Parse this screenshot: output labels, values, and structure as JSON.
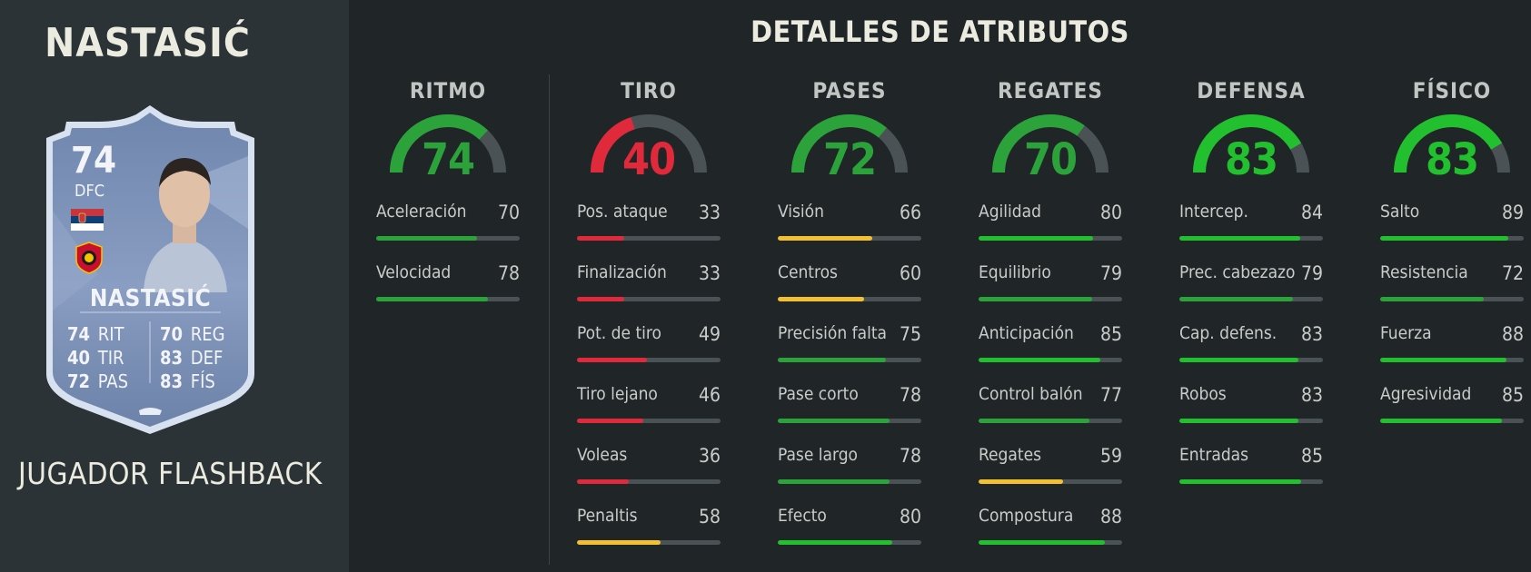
{
  "player": {
    "name": "NASTASIĆ",
    "card_type": "JUGADOR FLASHBACK",
    "card": {
      "rating": "74",
      "position": "DFC",
      "name": "NASTASIĆ",
      "stats_left": [
        {
          "value": "74",
          "label": "RIT"
        },
        {
          "value": "40",
          "label": "TIR"
        },
        {
          "value": "72",
          "label": "PAS"
        }
      ],
      "stats_right": [
        {
          "value": "70",
          "label": "REG"
        },
        {
          "value": "83",
          "label": "DEF"
        },
        {
          "value": "83",
          "label": "FÍS"
        }
      ]
    }
  },
  "title": "DETALLES DE ATRIBUTOS",
  "colors": {
    "green": "#2ca33a",
    "bright_green": "#22c02e",
    "yellow": "#f2c031",
    "red": "#e0293a",
    "track": "#4a5256"
  },
  "categories": [
    {
      "name": "RITMO",
      "value": 74,
      "attributes": [
        {
          "label": "Aceleración",
          "value": 70
        },
        {
          "label": "Velocidad",
          "value": 78
        }
      ]
    },
    {
      "name": "TIRO",
      "value": 40,
      "attributes": [
        {
          "label": "Pos. ataque",
          "value": 33
        },
        {
          "label": "Finalización",
          "value": 33
        },
        {
          "label": "Pot. de tiro",
          "value": 49
        },
        {
          "label": "Tiro lejano",
          "value": 46
        },
        {
          "label": "Voleas",
          "value": 36
        },
        {
          "label": "Penaltis",
          "value": 58
        }
      ]
    },
    {
      "name": "PASES",
      "value": 72,
      "attributes": [
        {
          "label": "Visión",
          "value": 66
        },
        {
          "label": "Centros",
          "value": 60
        },
        {
          "label": "Precisión falta",
          "value": 75
        },
        {
          "label": "Pase corto",
          "value": 78
        },
        {
          "label": "Pase largo",
          "value": 78
        },
        {
          "label": "Efecto",
          "value": 80
        }
      ]
    },
    {
      "name": "REGATES",
      "value": 70,
      "attributes": [
        {
          "label": "Agilidad",
          "value": 80
        },
        {
          "label": "Equilibrio",
          "value": 79
        },
        {
          "label": "Anticipación",
          "value": 85
        },
        {
          "label": "Control balón",
          "value": 77
        },
        {
          "label": "Regates",
          "value": 59
        },
        {
          "label": "Compostura",
          "value": 88
        }
      ]
    },
    {
      "name": "DEFENSA",
      "value": 83,
      "attributes": [
        {
          "label": "Intercep.",
          "value": 84
        },
        {
          "label": "Prec. cabezazo",
          "value": 79
        },
        {
          "label": "Cap. defens.",
          "value": 83
        },
        {
          "label": "Robos",
          "value": 83
        },
        {
          "label": "Entradas",
          "value": 85
        }
      ]
    },
    {
      "name": "FÍSICO",
      "value": 83,
      "attributes": [
        {
          "label": "Salto",
          "value": 89
        },
        {
          "label": "Resistencia",
          "value": 72
        },
        {
          "label": "Fuerza",
          "value": 88
        },
        {
          "label": "Agresividad",
          "value": 85
        }
      ]
    }
  ]
}
